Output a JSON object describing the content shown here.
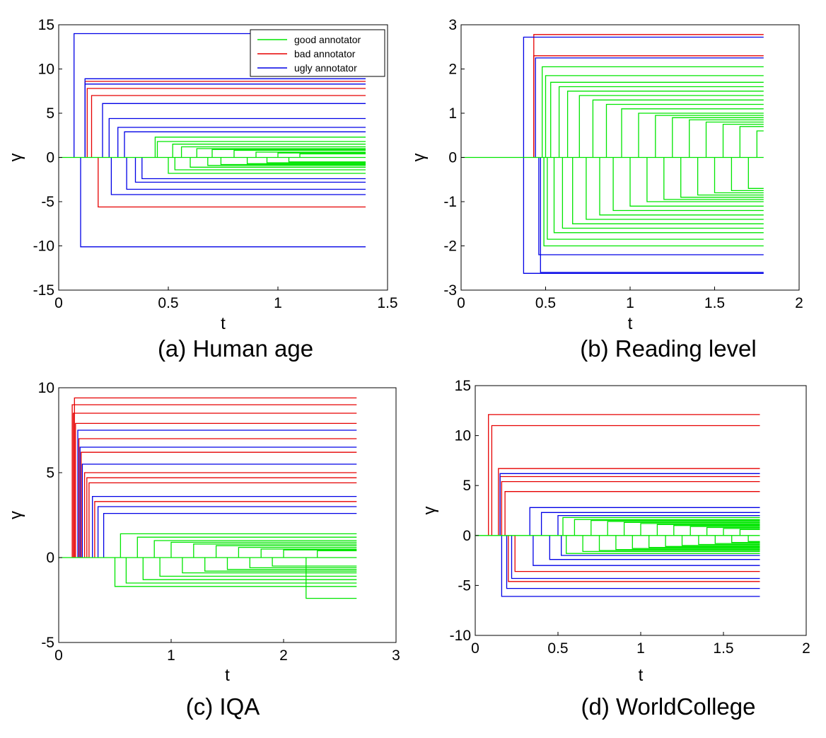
{
  "figure": {
    "legend": {
      "placement": "top-right of panel (a)",
      "entries": [
        {
          "label": "good annotator",
          "color": "#00e600"
        },
        {
          "label": "bad annotator",
          "color": "#e60000"
        },
        {
          "label": "ugly annotator",
          "color": "#0000e6"
        }
      ]
    }
  },
  "chart_data": [
    {
      "type": "line",
      "caption": "(a) Human age",
      "xlabel": "t",
      "ylabel": "γ",
      "xlim": [
        0,
        1.5
      ],
      "ylim": [
        -15,
        15
      ],
      "xticks": [
        0,
        0.5,
        1,
        1.5
      ],
      "xtick_labels": [
        "0",
        "0.5",
        "1",
        "1.5"
      ],
      "yticks": [
        -15,
        -10,
        -5,
        0,
        5,
        10,
        15
      ],
      "ytick_labels": [
        "-15",
        "-10",
        "-5",
        "0",
        "5",
        "10",
        "15"
      ],
      "t_end": 1.4,
      "grid": false,
      "series": [
        {
          "group": "ugly",
          "t0": 0.07,
          "level": 14
        },
        {
          "group": "ugly",
          "t0": 0.1,
          "level": -10.1
        },
        {
          "group": "ugly",
          "t0": 0.12,
          "level": 8.9
        },
        {
          "group": "ugly",
          "t0": 0.12,
          "level": 8.3
        },
        {
          "group": "bad",
          "t0": 0.12,
          "level": 8.6
        },
        {
          "group": "bad",
          "t0": 0.13,
          "level": 7.8
        },
        {
          "group": "bad",
          "t0": 0.15,
          "level": 7.0
        },
        {
          "group": "bad",
          "t0": 0.18,
          "level": -5.6
        },
        {
          "group": "ugly",
          "t0": 0.2,
          "level": 6.1
        },
        {
          "group": "ugly",
          "t0": 0.23,
          "level": 4.4
        },
        {
          "group": "ugly",
          "t0": 0.24,
          "level": -4.2
        },
        {
          "group": "ugly",
          "t0": 0.27,
          "level": 3.4
        },
        {
          "group": "ugly",
          "t0": 0.3,
          "level": 2.9
        },
        {
          "group": "ugly",
          "t0": 0.31,
          "level": -3.6
        },
        {
          "group": "ugly",
          "t0": 0.35,
          "level": -2.8
        },
        {
          "group": "ugly",
          "t0": 0.38,
          "level": -2.4
        },
        {
          "group": "good",
          "t0": 0.44,
          "level": 2.3
        },
        {
          "group": "good",
          "t0": 0.45,
          "level": 1.8
        },
        {
          "group": "good",
          "t0": 0.5,
          "level": -1.8
        },
        {
          "group": "good",
          "t0": 0.52,
          "level": 1.5
        },
        {
          "group": "good",
          "t0": 0.53,
          "level": -1.4
        },
        {
          "group": "good",
          "t0": 0.56,
          "level": 1.2
        },
        {
          "group": "good",
          "t0": 0.6,
          "level": -1.1
        },
        {
          "group": "good",
          "t0": 0.63,
          "level": 1.0
        },
        {
          "group": "good",
          "t0": 0.68,
          "level": -0.9
        },
        {
          "group": "good",
          "t0": 0.7,
          "level": 0.9
        },
        {
          "group": "good",
          "t0": 0.74,
          "level": -0.8
        },
        {
          "group": "good",
          "t0": 0.8,
          "level": 0.8
        },
        {
          "group": "good",
          "t0": 0.86,
          "level": -0.7
        },
        {
          "group": "good",
          "t0": 0.9,
          "level": 0.6
        },
        {
          "group": "good",
          "t0": 0.95,
          "level": -0.6
        },
        {
          "group": "good",
          "t0": 1.0,
          "level": 0.5
        },
        {
          "group": "good",
          "t0": 1.05,
          "level": -0.5
        },
        {
          "group": "good",
          "t0": 1.1,
          "level": 0.4
        }
      ]
    },
    {
      "type": "line",
      "caption": "(b) Reading level",
      "xlabel": "t",
      "ylabel": "γ",
      "xlim": [
        0,
        2
      ],
      "ylim": [
        -3,
        3
      ],
      "xticks": [
        0,
        0.5,
        1,
        1.5,
        2
      ],
      "xtick_labels": [
        "0",
        "0.5",
        "1",
        "1.5",
        "2"
      ],
      "yticks": [
        -3,
        -2,
        -1,
        0,
        1,
        2,
        3
      ],
      "ytick_labels": [
        "-3",
        "-2",
        "-1",
        "0",
        "1",
        "2",
        "3"
      ],
      "t_end": 1.79,
      "grid": false,
      "series": [
        {
          "group": "ugly",
          "t0": 0.37,
          "level": 2.72
        },
        {
          "group": "ugly",
          "t0": 0.37,
          "level": -2.62
        },
        {
          "group": "bad",
          "t0": 0.43,
          "level": 2.3
        },
        {
          "group": "bad",
          "t0": 0.43,
          "level": 2.78
        },
        {
          "group": "ugly",
          "t0": 0.44,
          "level": 2.25
        },
        {
          "group": "ugly",
          "t0": 0.46,
          "level": -2.2
        },
        {
          "group": "ugly",
          "t0": 0.47,
          "level": -2.6
        },
        {
          "group": "good",
          "t0": 0.48,
          "level": 2.05
        },
        {
          "group": "good",
          "t0": 0.49,
          "level": -2.0
        },
        {
          "group": "good",
          "t0": 0.5,
          "level": 1.85
        },
        {
          "group": "good",
          "t0": 0.51,
          "level": -1.85
        },
        {
          "group": "good",
          "t0": 0.53,
          "level": 1.7
        },
        {
          "group": "good",
          "t0": 0.55,
          "level": -1.7
        },
        {
          "group": "good",
          "t0": 0.58,
          "level": 1.6
        },
        {
          "group": "good",
          "t0": 0.6,
          "level": -1.6
        },
        {
          "group": "good",
          "t0": 0.63,
          "level": 1.5
        },
        {
          "group": "good",
          "t0": 0.66,
          "level": -1.5
        },
        {
          "group": "good",
          "t0": 0.7,
          "level": 1.4
        },
        {
          "group": "good",
          "t0": 0.74,
          "level": -1.4
        },
        {
          "group": "good",
          "t0": 0.78,
          "level": 1.3
        },
        {
          "group": "good",
          "t0": 0.82,
          "level": -1.3
        },
        {
          "group": "good",
          "t0": 0.86,
          "level": 1.2
        },
        {
          "group": "good",
          "t0": 0.9,
          "level": -1.2
        },
        {
          "group": "good",
          "t0": 0.95,
          "level": 1.1
        },
        {
          "group": "good",
          "t0": 1.0,
          "level": -1.1
        },
        {
          "group": "good",
          "t0": 1.05,
          "level": 1.0
        },
        {
          "group": "good",
          "t0": 1.1,
          "level": -1.0
        },
        {
          "group": "good",
          "t0": 1.15,
          "level": 0.95
        },
        {
          "group": "good",
          "t0": 1.2,
          "level": -0.95
        },
        {
          "group": "good",
          "t0": 1.25,
          "level": 0.9
        },
        {
          "group": "good",
          "t0": 1.3,
          "level": -0.9
        },
        {
          "group": "good",
          "t0": 1.35,
          "level": 0.85
        },
        {
          "group": "good",
          "t0": 1.4,
          "level": -0.85
        },
        {
          "group": "good",
          "t0": 1.45,
          "level": 0.8
        },
        {
          "group": "good",
          "t0": 1.5,
          "level": -0.8
        },
        {
          "group": "good",
          "t0": 1.55,
          "level": 0.75
        },
        {
          "group": "good",
          "t0": 1.6,
          "level": -0.75
        },
        {
          "group": "good",
          "t0": 1.65,
          "level": 0.7
        },
        {
          "group": "good",
          "t0": 1.7,
          "level": -0.7
        },
        {
          "group": "good",
          "t0": 1.75,
          "level": 0.6
        }
      ]
    },
    {
      "type": "line",
      "caption": "(c) IQA",
      "xlabel": "t",
      "ylabel": "γ",
      "xlim": [
        0,
        3
      ],
      "ylim": [
        -5,
        10
      ],
      "xticks": [
        0,
        1,
        2,
        3
      ],
      "xtick_labels": [
        "0",
        "1",
        "2",
        "3"
      ],
      "yticks": [
        -5,
        0,
        5,
        10
      ],
      "ytick_labels": [
        "-5",
        "0",
        "5",
        "10"
      ],
      "t_end": 2.65,
      "grid": false,
      "series": [
        {
          "group": "bad",
          "t0": 0.12,
          "level": 9.0
        },
        {
          "group": "bad",
          "t0": 0.13,
          "level": 8.5
        },
        {
          "group": "bad",
          "t0": 0.14,
          "level": 9.4
        },
        {
          "group": "bad",
          "t0": 0.15,
          "level": 7.9
        },
        {
          "group": "ugly",
          "t0": 0.17,
          "level": 7.5
        },
        {
          "group": "bad",
          "t0": 0.18,
          "level": 7.0
        },
        {
          "group": "ugly",
          "t0": 0.19,
          "level": 6.5
        },
        {
          "group": "bad",
          "t0": 0.2,
          "level": 6.2
        },
        {
          "group": "ugly",
          "t0": 0.21,
          "level": 5.5
        },
        {
          "group": "bad",
          "t0": 0.23,
          "level": 5.0
        },
        {
          "group": "bad",
          "t0": 0.25,
          "level": 4.7
        },
        {
          "group": "bad",
          "t0": 0.27,
          "level": 4.4
        },
        {
          "group": "ugly",
          "t0": 0.3,
          "level": 3.6
        },
        {
          "group": "bad",
          "t0": 0.32,
          "level": 3.3
        },
        {
          "group": "ugly",
          "t0": 0.35,
          "level": 3.0
        },
        {
          "group": "ugly",
          "t0": 0.4,
          "level": 2.6
        },
        {
          "group": "good",
          "t0": 0.5,
          "level": -1.7
        },
        {
          "group": "good",
          "t0": 0.55,
          "level": 1.4
        },
        {
          "group": "good",
          "t0": 0.6,
          "level": -1.5
        },
        {
          "group": "good",
          "t0": 0.7,
          "level": 1.2
        },
        {
          "group": "good",
          "t0": 0.75,
          "level": -1.3
        },
        {
          "group": "good",
          "t0": 0.85,
          "level": 1.0
        },
        {
          "group": "good",
          "t0": 0.9,
          "level": -1.1
        },
        {
          "group": "good",
          "t0": 1.0,
          "level": 0.9
        },
        {
          "group": "good",
          "t0": 1.1,
          "level": -0.9
        },
        {
          "group": "good",
          "t0": 1.2,
          "level": 0.8
        },
        {
          "group": "good",
          "t0": 1.3,
          "level": -0.8
        },
        {
          "group": "good",
          "t0": 1.4,
          "level": 0.7
        },
        {
          "group": "good",
          "t0": 1.5,
          "level": -0.7
        },
        {
          "group": "good",
          "t0": 1.6,
          "level": 0.6
        },
        {
          "group": "good",
          "t0": 1.7,
          "level": -0.6
        },
        {
          "group": "good",
          "t0": 1.8,
          "level": 0.5
        },
        {
          "group": "good",
          "t0": 1.9,
          "level": -0.5
        },
        {
          "group": "good",
          "t0": 2.0,
          "level": 0.45
        },
        {
          "group": "good",
          "t0": 2.2,
          "level": -2.4
        },
        {
          "group": "good",
          "t0": 2.3,
          "level": 0.4
        }
      ]
    },
    {
      "type": "line",
      "caption": "(d) WorldCollege",
      "xlabel": "t",
      "ylabel": "γ",
      "xlim": [
        0,
        2
      ],
      "ylim": [
        -10,
        15
      ],
      "xticks": [
        0,
        0.5,
        1,
        1.5,
        2
      ],
      "xtick_labels": [
        "0",
        "0.5",
        "1",
        "1.5",
        "2"
      ],
      "yticks": [
        -10,
        -5,
        0,
        5,
        10,
        15
      ],
      "ytick_labels": [
        "-10",
        "-5",
        "0",
        "5",
        "10",
        "15"
      ],
      "t_end": 1.72,
      "grid": false,
      "series": [
        {
          "group": "bad",
          "t0": 0.08,
          "level": 12.1
        },
        {
          "group": "bad",
          "t0": 0.1,
          "level": 11.0
        },
        {
          "group": "bad",
          "t0": 0.14,
          "level": 6.7
        },
        {
          "group": "ugly",
          "t0": 0.15,
          "level": 6.2
        },
        {
          "group": "bad",
          "t0": 0.15,
          "level": 5.9
        },
        {
          "group": "bad",
          "t0": 0.16,
          "level": 5.4
        },
        {
          "group": "ugly",
          "t0": 0.16,
          "level": -6.1
        },
        {
          "group": "bad",
          "t0": 0.18,
          "level": 4.4
        },
        {
          "group": "ugly",
          "t0": 0.19,
          "level": -5.3
        },
        {
          "group": "bad",
          "t0": 0.2,
          "level": -4.6
        },
        {
          "group": "ugly",
          "t0": 0.22,
          "level": -4.3
        },
        {
          "group": "bad",
          "t0": 0.24,
          "level": -3.6
        },
        {
          "group": "ugly",
          "t0": 0.33,
          "level": 2.8
        },
        {
          "group": "ugly",
          "t0": 0.35,
          "level": -3.0
        },
        {
          "group": "ugly",
          "t0": 0.4,
          "level": 2.3
        },
        {
          "group": "ugly",
          "t0": 0.45,
          "level": -2.4
        },
        {
          "group": "ugly",
          "t0": 0.5,
          "level": 2.0
        },
        {
          "group": "ugly",
          "t0": 0.52,
          "level": -2.0
        },
        {
          "group": "good",
          "t0": 0.53,
          "level": 1.8
        },
        {
          "group": "good",
          "t0": 0.55,
          "level": -1.8
        },
        {
          "group": "good",
          "t0": 0.6,
          "level": 1.6
        },
        {
          "group": "good",
          "t0": 0.65,
          "level": -1.6
        },
        {
          "group": "good",
          "t0": 0.7,
          "level": 1.5
        },
        {
          "group": "good",
          "t0": 0.75,
          "level": -1.5
        },
        {
          "group": "good",
          "t0": 0.8,
          "level": 1.4
        },
        {
          "group": "good",
          "t0": 0.85,
          "level": -1.4
        },
        {
          "group": "good",
          "t0": 0.9,
          "level": 1.3
        },
        {
          "group": "good",
          "t0": 0.95,
          "level": -1.3
        },
        {
          "group": "good",
          "t0": 1.0,
          "level": 1.2
        },
        {
          "group": "good",
          "t0": 1.05,
          "level": -1.2
        },
        {
          "group": "good",
          "t0": 1.1,
          "level": 1.1
        },
        {
          "group": "good",
          "t0": 1.15,
          "level": -1.1
        },
        {
          "group": "good",
          "t0": 1.2,
          "level": 1.0
        },
        {
          "group": "good",
          "t0": 1.25,
          "level": -1.0
        },
        {
          "group": "good",
          "t0": 1.3,
          "level": 0.9
        },
        {
          "group": "good",
          "t0": 1.35,
          "level": -0.9
        },
        {
          "group": "good",
          "t0": 1.4,
          "level": 0.8
        },
        {
          "group": "good",
          "t0": 1.45,
          "level": -0.8
        },
        {
          "group": "good",
          "t0": 1.5,
          "level": 0.7
        },
        {
          "group": "good",
          "t0": 1.55,
          "level": -0.7
        },
        {
          "group": "good",
          "t0": 1.6,
          "level": 0.6
        },
        {
          "group": "good",
          "t0": 1.65,
          "level": -0.6
        }
      ]
    }
  ]
}
